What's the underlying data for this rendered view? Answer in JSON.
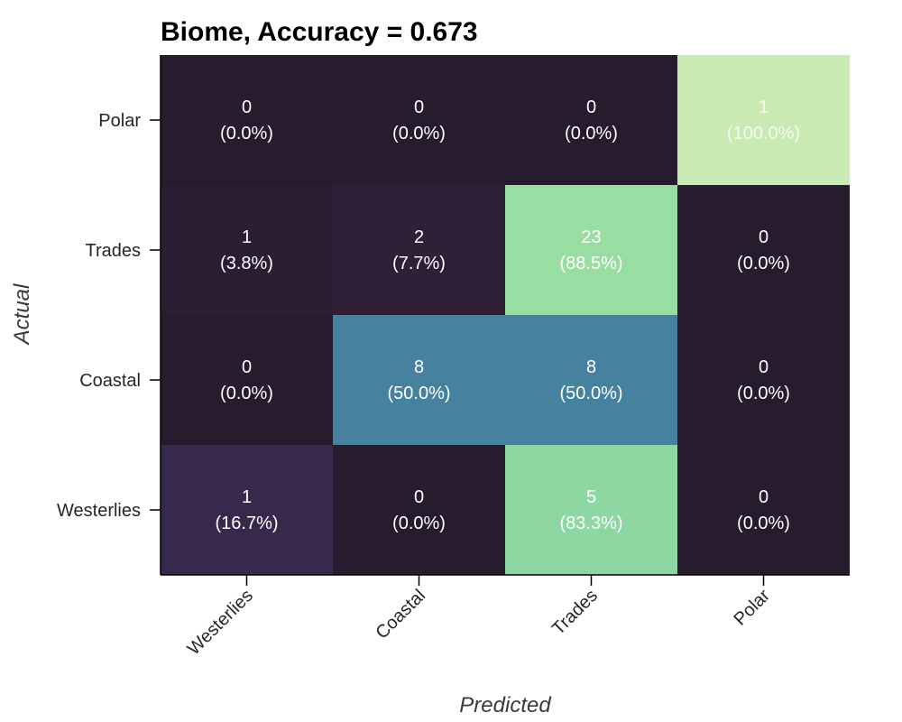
{
  "chart_data": {
    "type": "heatmap",
    "title": "Biome, Accuracy = 0.673",
    "xlabel": "Predicted",
    "ylabel": "Actual",
    "x_categories": [
      "Westerlies",
      "Coastal",
      "Trades",
      "Polar"
    ],
    "y_categories": [
      "Polar",
      "Trades",
      "Coastal",
      "Westerlies"
    ],
    "counts": [
      [
        0,
        0,
        0,
        1
      ],
      [
        1,
        2,
        23,
        0
      ],
      [
        0,
        8,
        8,
        0
      ],
      [
        1,
        0,
        5,
        0
      ]
    ],
    "percent_labels": [
      [
        "(0.0%)",
        "(0.0%)",
        "(0.0%)",
        "(100.0%)"
      ],
      [
        "(3.8%)",
        "(7.7%)",
        "(88.5%)",
        "(0.0%)"
      ],
      [
        "(0.0%)",
        "(50.0%)",
        "(50.0%)",
        "(0.0%)"
      ],
      [
        "(16.7%)",
        "(0.0%)",
        "(83.3%)",
        "(0.0%)"
      ]
    ],
    "row_fractions": [
      [
        0.0,
        0.0,
        0.0,
        1.0
      ],
      [
        0.038,
        0.077,
        0.885,
        0.0
      ],
      [
        0.0,
        0.5,
        0.5,
        0.0
      ],
      [
        0.167,
        0.0,
        0.833,
        0.0
      ]
    ],
    "colormap": [
      "#261c2e",
      "#34233f",
      "#3c3566",
      "#3f5f8e",
      "#4681a0",
      "#5da8a6",
      "#7acda2",
      "#95dca2",
      "#caeab4"
    ],
    "grid": false
  }
}
